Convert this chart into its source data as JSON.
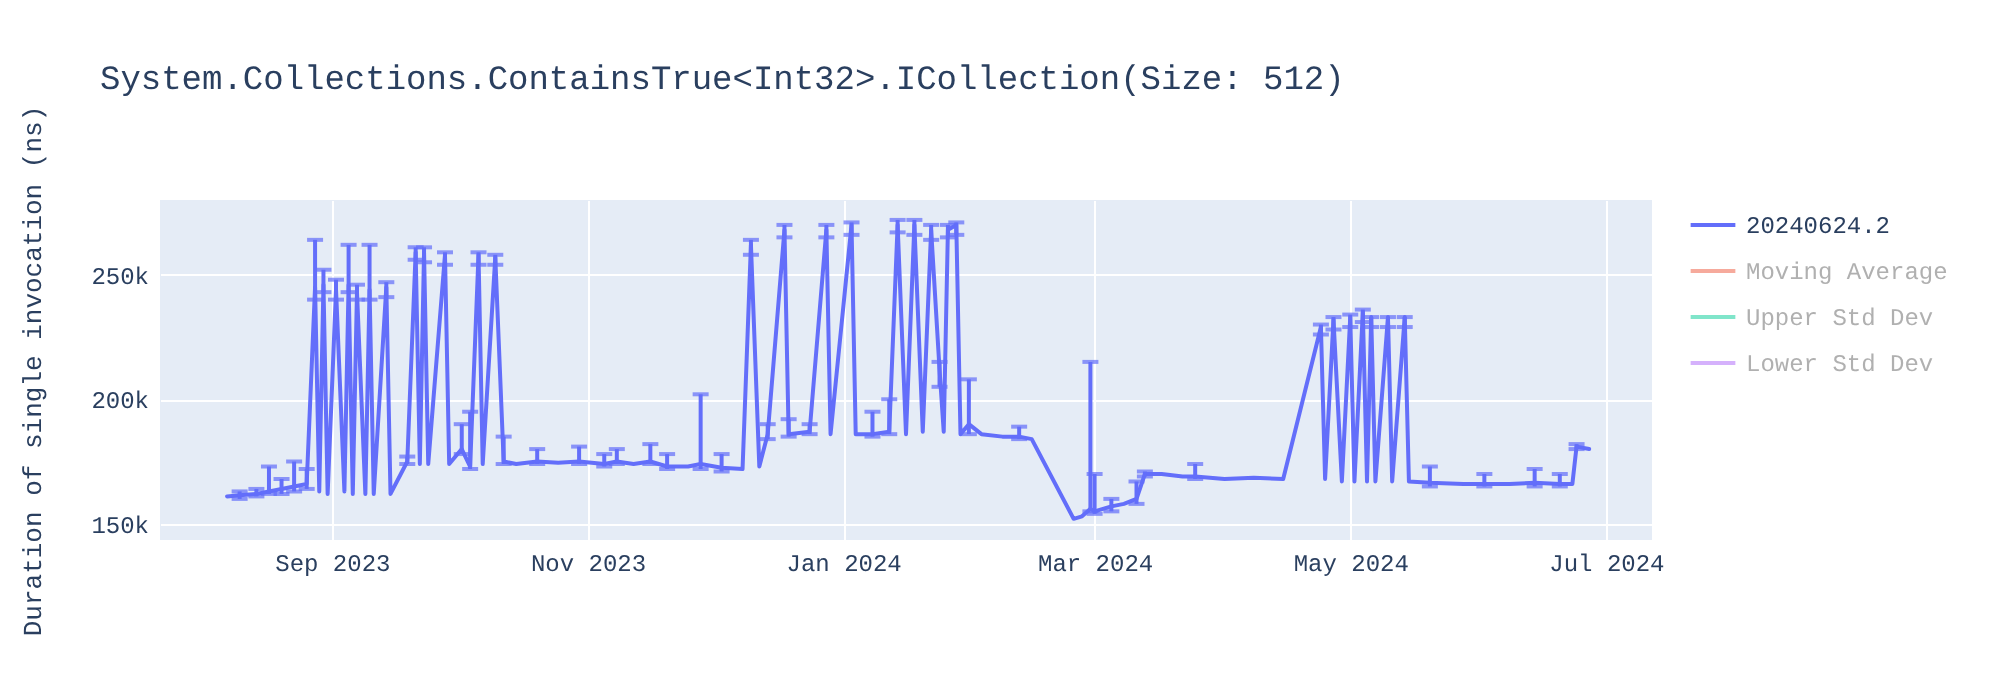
{
  "chart_data": {
    "type": "line",
    "title": "System.Collections.ContainsTrue<Int32>.ICollection(Size: 512)",
    "ylabel": "Duration of single invocation (ns)",
    "x": [
      "2023-08-07",
      "2023-08-10",
      "2023-08-14",
      "2023-08-17",
      "2023-08-20",
      "2023-08-23",
      "2023-08-26",
      "2023-08-28",
      "2023-08-29",
      "2023-08-30",
      "2023-08-31",
      "2023-09-02",
      "2023-09-04",
      "2023-09-05",
      "2023-09-06",
      "2023-09-07",
      "2023-09-09",
      "2023-09-10",
      "2023-09-11",
      "2023-09-14",
      "2023-09-15",
      "2023-09-19",
      "2023-09-21",
      "2023-09-22",
      "2023-09-23",
      "2023-09-24",
      "2023-09-28",
      "2023-09-29",
      "2023-10-02",
      "2023-10-04",
      "2023-10-06",
      "2023-10-07",
      "2023-10-10",
      "2023-10-12",
      "2023-10-15",
      "2023-10-20",
      "2023-10-25",
      "2023-10-30",
      "2023-11-05",
      "2023-11-08",
      "2023-11-12",
      "2023-11-16",
      "2023-11-20",
      "2023-11-25",
      "2023-11-28",
      "2023-12-03",
      "2023-12-08",
      "2023-12-10",
      "2023-12-12",
      "2023-12-14",
      "2023-12-18",
      "2023-12-19",
      "2023-12-24",
      "2023-12-28",
      "2023-12-29",
      "2024-01-03",
      "2024-01-04",
      "2024-01-08",
      "2024-01-12",
      "2024-01-14",
      "2024-01-16",
      "2024-01-18",
      "2024-01-20",
      "2024-01-22",
      "2024-01-24",
      "2024-01-25",
      "2024-01-26",
      "2024-01-28",
      "2024-01-29",
      "2024-01-31",
      "2024-02-03",
      "2024-02-08",
      "2024-02-12",
      "2024-02-15",
      "2024-02-25",
      "2024-02-27",
      "2024-02-29",
      "2024-03-01",
      "2024-03-03",
      "2024-03-05",
      "2024-03-08",
      "2024-03-11",
      "2024-03-13",
      "2024-03-17",
      "2024-03-22",
      "2024-03-25",
      "2024-04-01",
      "2024-04-08",
      "2024-04-15",
      "2024-04-24",
      "2024-04-25",
      "2024-04-27",
      "2024-04-29",
      "2024-05-01",
      "2024-05-02",
      "2024-05-04",
      "2024-05-05",
      "2024-05-06",
      "2024-05-07",
      "2024-05-10",
      "2024-05-11",
      "2024-05-14",
      "2024-05-15",
      "2024-05-20",
      "2024-05-28",
      "2024-06-02",
      "2024-06-08",
      "2024-06-14",
      "2024-06-20",
      "2024-06-23",
      "2024-06-24",
      "2024-06-27"
    ],
    "series": [
      {
        "name": "20240624.2",
        "color": "#636efa",
        "values": [
          161000,
          161500,
          162000,
          163000,
          164000,
          165000,
          166000,
          245000,
          163000,
          246000,
          162000,
          244000,
          163000,
          246000,
          162000,
          243000,
          162000,
          244000,
          162000,
          245000,
          162000,
          175000,
          259000,
          174000,
          259000,
          174000,
          258000,
          174000,
          180000,
          173000,
          258000,
          174000,
          257000,
          175000,
          174000,
          175000,
          174500,
          175000,
          174000,
          175000,
          174000,
          175000,
          173000,
          173000,
          174000,
          172500,
          172000,
          262000,
          173000,
          186000,
          268000,
          186000,
          187000,
          268000,
          186000,
          270000,
          186000,
          186000,
          187000,
          270000,
          186000,
          270000,
          187000,
          268000,
          212000,
          187000,
          268000,
          270000,
          186000,
          190000,
          186000,
          185000,
          185000,
          184000,
          152000,
          153000,
          156000,
          155000,
          156000,
          157000,
          158000,
          160000,
          170000,
          170000,
          169000,
          169000,
          168000,
          168500,
          168000,
          229000,
          168000,
          232000,
          167000,
          233000,
          167000,
          235000,
          167000,
          233000,
          167000,
          233000,
          167000,
          233000,
          167000,
          166500,
          166000,
          166000,
          166000,
          166500,
          166000,
          166000,
          181000,
          180000
        ],
        "errors": [
          null,
          [
            160000,
            163000
          ],
          [
            161000,
            164000
          ],
          [
            162000,
            173000
          ],
          [
            162000,
            168000
          ],
          [
            163000,
            175000
          ],
          [
            164000,
            172000
          ],
          [
            240000,
            264000
          ],
          null,
          [
            243000,
            252000
          ],
          null,
          [
            240000,
            248000
          ],
          null,
          [
            243000,
            262000
          ],
          null,
          [
            240000,
            246000
          ],
          null,
          [
            240000,
            262000
          ],
          null,
          [
            241000,
            247000
          ],
          null,
          [
            174000,
            177000
          ],
          [
            256000,
            261000
          ],
          null,
          [
            255000,
            261000
          ],
          null,
          [
            254000,
            259000
          ],
          null,
          [
            178000,
            190000
          ],
          [
            172000,
            195000
          ],
          [
            254000,
            259000
          ],
          null,
          [
            254000,
            258000
          ],
          [
            174000,
            185000
          ],
          null,
          [
            174000,
            180000
          ],
          null,
          [
            174000,
            181000
          ],
          [
            173000,
            178000
          ],
          [
            174000,
            180000
          ],
          null,
          [
            174000,
            182000
          ],
          [
            172000,
            178000
          ],
          null,
          [
            172000,
            202000
          ],
          [
            171000,
            178000
          ],
          null,
          [
            258000,
            264000
          ],
          null,
          [
            184000,
            190000
          ],
          [
            265000,
            270000
          ],
          [
            185000,
            192000
          ],
          [
            186000,
            190000
          ],
          [
            265000,
            270000
          ],
          null,
          [
            266000,
            271000
          ],
          null,
          [
            185000,
            195000
          ],
          [
            186000,
            200000
          ],
          [
            267000,
            272000
          ],
          null,
          [
            266000,
            272000
          ],
          null,
          [
            264000,
            270000
          ],
          [
            205000,
            215000
          ],
          null,
          [
            265000,
            270000
          ],
          [
            266000,
            271000
          ],
          null,
          [
            186000,
            208000
          ],
          null,
          null,
          [
            184000,
            189000
          ],
          null,
          null,
          null,
          [
            155000,
            215000
          ],
          [
            154000,
            170000
          ],
          null,
          [
            155000,
            160000
          ],
          null,
          [
            158000,
            167000
          ],
          [
            169000,
            171000
          ],
          null,
          null,
          [
            168000,
            174000
          ],
          null,
          null,
          null,
          [
            226000,
            230000
          ],
          null,
          [
            228000,
            233000
          ],
          null,
          [
            229000,
            234000
          ],
          null,
          [
            231000,
            236000
          ],
          null,
          [
            229000,
            233000
          ],
          null,
          [
            229000,
            233000
          ],
          null,
          [
            229000,
            233000
          ],
          null,
          [
            165000,
            173000
          ],
          null,
          [
            165000,
            170000
          ],
          null,
          [
            165000,
            172000
          ],
          [
            165000,
            170000
          ],
          null,
          [
            180000,
            182000
          ],
          null
        ]
      },
      {
        "name": "Moving Average",
        "color": "#f6aa9c",
        "values": [
          null,
          null,
          null,
          null,
          null,
          null,
          null,
          null,
          null,
          null,
          null,
          null,
          null,
          null,
          null,
          null,
          null,
          null,
          null,
          null,
          null,
          null,
          null,
          null,
          null,
          null,
          null,
          null,
          null,
          null,
          null,
          null,
          null,
          null,
          null,
          null,
          null,
          null,
          null,
          null,
          null,
          null,
          null,
          null,
          null,
          null,
          null,
          null,
          null,
          null,
          null,
          null,
          null,
          null,
          null,
          null,
          null,
          null,
          null,
          null,
          null,
          null,
          null,
          null,
          null,
          null,
          null,
          null,
          null,
          null,
          null,
          null,
          null,
          null,
          null,
          null,
          null,
          null,
          null,
          null,
          null,
          null,
          null,
          null,
          null,
          null,
          null,
          null,
          null,
          null,
          null,
          null,
          null,
          null,
          null,
          null,
          null,
          null,
          null,
          null,
          null,
          null,
          null,
          null,
          null,
          null,
          null,
          null,
          null,
          null,
          null,
          null
        ]
      },
      {
        "name": "Upper Std Dev",
        "color": "#80e5ca",
        "values": [
          null,
          null,
          null,
          null,
          null,
          null,
          null,
          null,
          null,
          null,
          null,
          null,
          null,
          null,
          null,
          null,
          null,
          null,
          null,
          null,
          null,
          null,
          null,
          null,
          null,
          null,
          null,
          null,
          null,
          null,
          null,
          null,
          null,
          null,
          null,
          null,
          null,
          null,
          null,
          null,
          null,
          null,
          null,
          null,
          null,
          null,
          null,
          null,
          null,
          null,
          null,
          null,
          null,
          null,
          null,
          null,
          null,
          null,
          null,
          null,
          null,
          null,
          null,
          null,
          null,
          null,
          null,
          null,
          null,
          null,
          null,
          null,
          null,
          null,
          null,
          null,
          null,
          null,
          null,
          null,
          null,
          null,
          null,
          null,
          null,
          null,
          null,
          null,
          null,
          null,
          null,
          null,
          null,
          null,
          null,
          null,
          null,
          null,
          null,
          null,
          null,
          null,
          null,
          null,
          null,
          null,
          null,
          null,
          null,
          null,
          null,
          null
        ]
      },
      {
        "name": "Lower Std Dev",
        "color": "#d5b1fc",
        "values": [
          null,
          null,
          null,
          null,
          null,
          null,
          null,
          null,
          null,
          null,
          null,
          null,
          null,
          null,
          null,
          null,
          null,
          null,
          null,
          null,
          null,
          null,
          null,
          null,
          null,
          null,
          null,
          null,
          null,
          null,
          null,
          null,
          null,
          null,
          null,
          null,
          null,
          null,
          null,
          null,
          null,
          null,
          null,
          null,
          null,
          null,
          null,
          null,
          null,
          null,
          null,
          null,
          null,
          null,
          null,
          null,
          null,
          null,
          null,
          null,
          null,
          null,
          null,
          null,
          null,
          null,
          null,
          null,
          null,
          null,
          null,
          null,
          null,
          null,
          null,
          null,
          null,
          null,
          null,
          null,
          null,
          null,
          null,
          null,
          null,
          null,
          null,
          null,
          null,
          null,
          null,
          null,
          null,
          null,
          null,
          null,
          null,
          null,
          null,
          null,
          null,
          null,
          null,
          null,
          null,
          null,
          null,
          null,
          null,
          null,
          null,
          null
        ]
      }
    ],
    "xlim": [
      "2023-07-22",
      "2024-07-12"
    ],
    "xticks": [
      {
        "value": "2023-09-01",
        "label": "Sep 2023"
      },
      {
        "value": "2023-11-01",
        "label": "Nov 2023"
      },
      {
        "value": "2024-01-01",
        "label": "Jan 2024"
      },
      {
        "value": "2024-03-01",
        "label": "Mar 2024"
      },
      {
        "value": "2024-05-01",
        "label": "May 2024"
      },
      {
        "value": "2024-07-01",
        "label": "Jul 2024"
      }
    ],
    "ylim": [
      143500,
      280000
    ],
    "yticks": [
      {
        "value": 150000,
        "label": "150k"
      },
      {
        "value": 200000,
        "label": "200k"
      },
      {
        "value": 250000,
        "label": "250k"
      }
    ],
    "grid": true,
    "legend": "top right"
  }
}
